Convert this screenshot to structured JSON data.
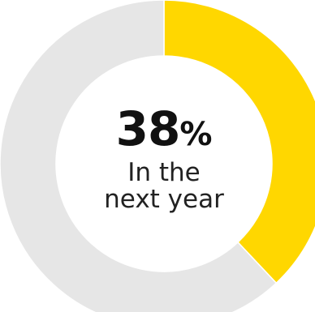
{
  "chart_data": {
    "type": "pie",
    "style": "donut",
    "slices": [
      {
        "label": "In the next year",
        "value": 38,
        "color": "#FFD700"
      },
      {
        "label": "",
        "value": 62,
        "color": "#E6E6E6"
      }
    ],
    "center_value": "38",
    "center_unit": "%",
    "center_caption_line1": "In the",
    "center_caption_line2": "next year"
  }
}
